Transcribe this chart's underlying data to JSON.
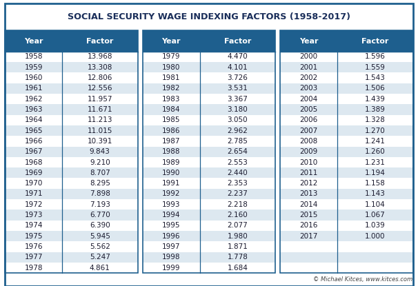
{
  "title": "SOCIAL SECURITY WAGE INDEXING FACTORS (1958-2017)",
  "header_bg": "#1e5f8e",
  "header_text": "#ffffff",
  "row_bg_odd": "#ffffff",
  "row_bg_even": "#dde8f0",
  "border_color": "#1e5f8e",
  "outer_bg": "#ffffff",
  "text_color": "#1a1a2e",
  "footer_text": "© Michael Kitces, www.kitces.com",
  "title_color": "#1a2e5a",
  "col1_data": [
    [
      "1958",
      "13.968"
    ],
    [
      "1959",
      "13.308"
    ],
    [
      "1960",
      "12.806"
    ],
    [
      "1961",
      "12.556"
    ],
    [
      "1962",
      "11.957"
    ],
    [
      "1963",
      "11.671"
    ],
    [
      "1964",
      "11.213"
    ],
    [
      "1965",
      "11.015"
    ],
    [
      "1966",
      "10.391"
    ],
    [
      "1967",
      "9.843"
    ],
    [
      "1968",
      "9.210"
    ],
    [
      "1969",
      "8.707"
    ],
    [
      "1970",
      "8.295"
    ],
    [
      "1971",
      "7.898"
    ],
    [
      "1972",
      "7.193"
    ],
    [
      "1973",
      "6.770"
    ],
    [
      "1974",
      "6.390"
    ],
    [
      "1975",
      "5.945"
    ],
    [
      "1976",
      "5.562"
    ],
    [
      "1977",
      "5.247"
    ],
    [
      "1978",
      "4.861"
    ]
  ],
  "col2_data": [
    [
      "1979",
      "4.470"
    ],
    [
      "1980",
      "4.101"
    ],
    [
      "1981",
      "3.726"
    ],
    [
      "1982",
      "3.531"
    ],
    [
      "1983",
      "3.367"
    ],
    [
      "1984",
      "3.180"
    ],
    [
      "1985",
      "3.050"
    ],
    [
      "1986",
      "2.962"
    ],
    [
      "1987",
      "2.785"
    ],
    [
      "1988",
      "2.654"
    ],
    [
      "1989",
      "2.553"
    ],
    [
      "1990",
      "2.440"
    ],
    [
      "1991",
      "2.353"
    ],
    [
      "1992",
      "2.237"
    ],
    [
      "1993",
      "2.218"
    ],
    [
      "1994",
      "2.160"
    ],
    [
      "1995",
      "2.077"
    ],
    [
      "1996",
      "1.980"
    ],
    [
      "1997",
      "1.871"
    ],
    [
      "1998",
      "1.778"
    ],
    [
      "1999",
      "1.684"
    ]
  ],
  "col3_data": [
    [
      "2000",
      "1.596"
    ],
    [
      "2001",
      "1.559"
    ],
    [
      "2002",
      "1.543"
    ],
    [
      "2003",
      "1.506"
    ],
    [
      "2004",
      "1.439"
    ],
    [
      "2005",
      "1.389"
    ],
    [
      "2006",
      "1.328"
    ],
    [
      "2007",
      "1.270"
    ],
    [
      "2008",
      "1.241"
    ],
    [
      "2009",
      "1.260"
    ],
    [
      "2010",
      "1.231"
    ],
    [
      "2011",
      "1.194"
    ],
    [
      "2012",
      "1.158"
    ],
    [
      "2013",
      "1.143"
    ],
    [
      "2014",
      "1.104"
    ],
    [
      "2015",
      "1.067"
    ],
    [
      "2016",
      "1.039"
    ],
    [
      "2017",
      "1.000"
    ]
  ]
}
